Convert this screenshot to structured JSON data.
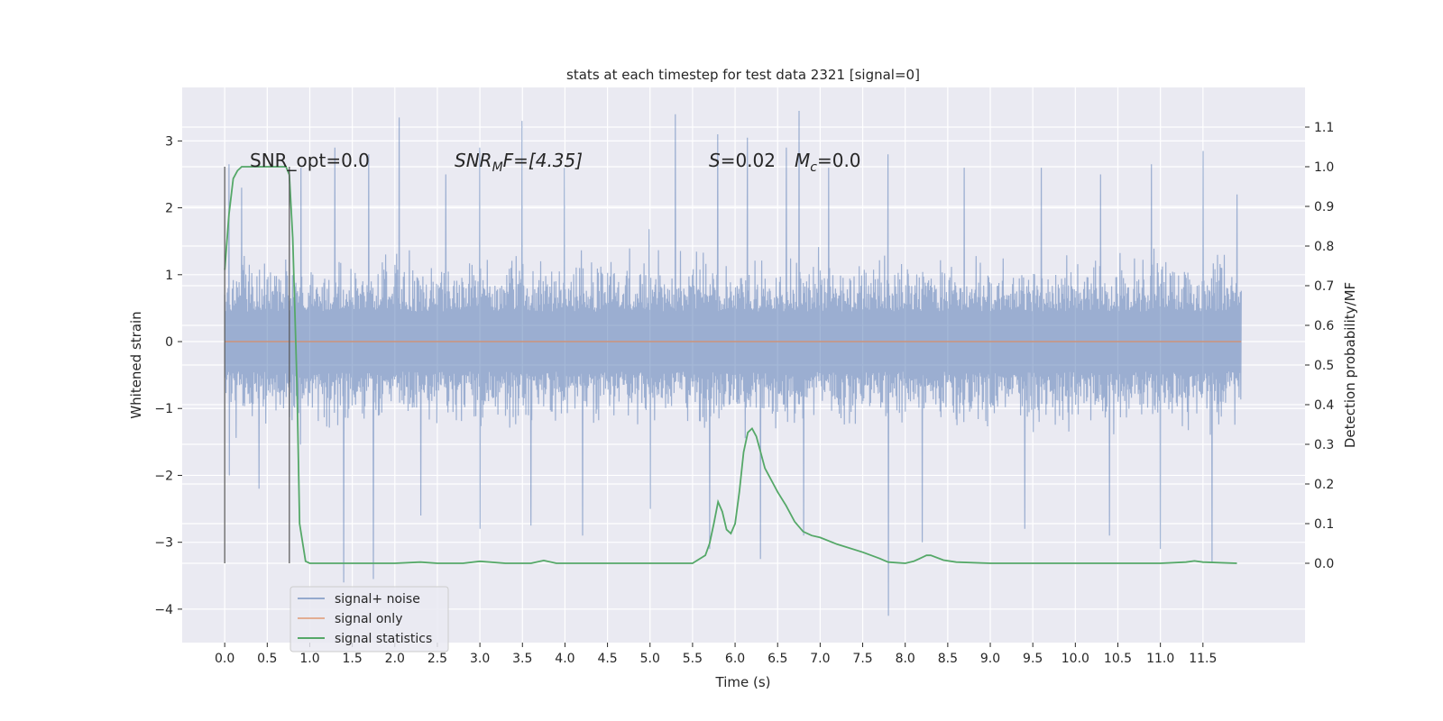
{
  "chart_data": {
    "type": "line",
    "title": "stats at each timestep for test data 2321 [signal=0]",
    "xlabel": "Time (s)",
    "ylabel": "Whitened strain",
    "ylabel_right": "Detection probability/MF",
    "xlim": [
      -0.5,
      12.7
    ],
    "ylim": [
      -4.5,
      3.8
    ],
    "ylim_right": [
      -0.2,
      1.2
    ],
    "x_ticks": [
      "0.0",
      "0.5",
      "1.0",
      "1.5",
      "2.0",
      "2.5",
      "3.0",
      "3.5",
      "4.0",
      "4.5",
      "5.0",
      "5.5",
      "6.0",
      "6.5",
      "7.0",
      "7.5",
      "8.0",
      "8.5",
      "9.0",
      "9.5",
      "10.0",
      "10.5",
      "11.0",
      "11.5"
    ],
    "y_ticks": [
      "3",
      "2",
      "1",
      "0",
      "−1",
      "−2",
      "−3",
      "−4"
    ],
    "y_right_ticks": [
      "1.1",
      "1.0",
      "0.9",
      "0.8",
      "0.7",
      "0.6",
      "0.5",
      "0.4",
      "0.3",
      "0.2",
      "0.1",
      "0.0"
    ],
    "grid": true,
    "legend_position": "lower-left",
    "annotations": {
      "snr_opt": "SNR_opt=0.0",
      "snr_mf_sym": "SNR",
      "snr_mf_sub": "M",
      "snr_mf_tail": "F=[4.35]",
      "s_sym": "S",
      "s_val": "=0.02",
      "mc_sym": "M",
      "mc_sub": "c",
      "mc_val": "=0.0"
    },
    "vertical_markers": [
      0.0,
      0.76
    ],
    "series": [
      {
        "name": "signal+ noise",
        "color": "#4c72b0",
        "axis": "left",
        "x_range": [
          0.0,
          11.95
        ],
        "typical_range": [
          -1.3,
          1.3
        ],
        "peaks": [
          [
            0.05,
            2.65
          ],
          [
            0.2,
            2.3
          ],
          [
            0.9,
            2.6
          ],
          [
            1.3,
            2.9
          ],
          [
            1.7,
            2.8
          ],
          [
            2.05,
            3.35
          ],
          [
            2.6,
            2.5
          ],
          [
            3.0,
            2.9
          ],
          [
            3.5,
            3.3
          ],
          [
            4.0,
            2.6
          ],
          [
            5.3,
            3.4
          ],
          [
            5.8,
            3.1
          ],
          [
            6.15,
            3.05
          ],
          [
            6.6,
            2.9
          ],
          [
            6.75,
            3.45
          ],
          [
            7.1,
            2.6
          ],
          [
            7.8,
            2.8
          ],
          [
            8.7,
            2.6
          ],
          [
            9.6,
            2.6
          ],
          [
            10.3,
            2.5
          ],
          [
            10.9,
            2.65
          ],
          [
            11.5,
            2.85
          ],
          [
            11.9,
            2.2
          ]
        ],
        "troughs": [
          [
            0.05,
            -2.0
          ],
          [
            0.4,
            -2.2
          ],
          [
            1.4,
            -3.6
          ],
          [
            1.75,
            -3.55
          ],
          [
            2.3,
            -2.6
          ],
          [
            3.0,
            -2.8
          ],
          [
            3.6,
            -2.75
          ],
          [
            4.2,
            -2.9
          ],
          [
            5.0,
            -2.5
          ],
          [
            5.7,
            -3.1
          ],
          [
            6.3,
            -3.25
          ],
          [
            6.8,
            -2.9
          ],
          [
            7.8,
            -4.1
          ],
          [
            8.2,
            -3.0
          ],
          [
            9.4,
            -2.8
          ],
          [
            10.4,
            -2.9
          ],
          [
            11.0,
            -3.1
          ],
          [
            11.6,
            -3.3
          ]
        ]
      },
      {
        "name": "signal only",
        "color": "#dd8452",
        "axis": "left",
        "x": [
          0.0,
          11.95
        ],
        "values": [
          0.0,
          0.0
        ]
      },
      {
        "name": "signal statistics",
        "color": "#55a868",
        "axis": "right",
        "x": [
          0.0,
          0.05,
          0.1,
          0.15,
          0.2,
          0.3,
          0.5,
          0.65,
          0.72,
          0.76,
          0.8,
          0.85,
          0.88,
          0.95,
          1.0,
          1.5,
          2.0,
          2.3,
          2.5,
          2.8,
          3.0,
          3.3,
          3.6,
          3.75,
          3.9,
          4.5,
          5.0,
          5.5,
          5.65,
          5.7,
          5.75,
          5.8,
          5.85,
          5.9,
          5.95,
          6.0,
          6.05,
          6.1,
          6.15,
          6.2,
          6.25,
          6.3,
          6.35,
          6.4,
          6.45,
          6.5,
          6.6,
          6.7,
          6.8,
          6.9,
          7.0,
          7.2,
          7.5,
          7.7,
          7.8,
          8.0,
          8.1,
          8.2,
          8.25,
          8.3,
          8.45,
          8.6,
          9.0,
          9.5,
          10.0,
          10.5,
          11.0,
          11.3,
          11.4,
          11.5,
          11.9
        ],
        "values": [
          0.74,
          0.88,
          0.97,
          0.99,
          1.0,
          1.0,
          1.0,
          1.0,
          1.0,
          0.98,
          0.82,
          0.45,
          0.1,
          0.005,
          0.0,
          0.0,
          0.0,
          0.003,
          0.0,
          0.0,
          0.005,
          0.0,
          0.0,
          0.007,
          0.0,
          0.0,
          0.0,
          0.0,
          0.02,
          0.05,
          0.1,
          0.155,
          0.13,
          0.085,
          0.075,
          0.1,
          0.18,
          0.28,
          0.33,
          0.34,
          0.32,
          0.28,
          0.24,
          0.22,
          0.2,
          0.18,
          0.145,
          0.105,
          0.08,
          0.07,
          0.065,
          0.048,
          0.028,
          0.012,
          0.003,
          0.0,
          0.005,
          0.015,
          0.02,
          0.02,
          0.008,
          0.003,
          0.0,
          0.0,
          0.0,
          0.0,
          0.0,
          0.003,
          0.006,
          0.003,
          0.0
        ]
      }
    ]
  }
}
